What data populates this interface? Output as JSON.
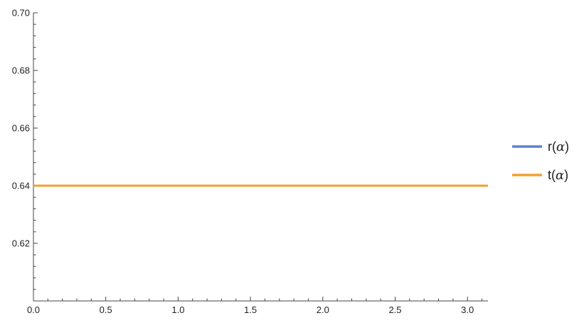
{
  "chart_data": {
    "type": "line",
    "title": "",
    "xlabel": "",
    "ylabel": "",
    "xlim": [
      0,
      3.14159
    ],
    "ylim": [
      0.6,
      0.7
    ],
    "x_ticks": [
      0,
      0.5,
      1.0,
      1.5,
      2.0,
      2.5,
      3.0
    ],
    "x_tick_labels": [
      "0.0",
      "0.5",
      "1.0",
      "1.5",
      "2.0",
      "2.5",
      "3.0"
    ],
    "y_ticks": [
      0.62,
      0.64,
      0.66,
      0.68,
      0.7
    ],
    "y_tick_labels": [
      "0.62",
      "0.64",
      "0.66",
      "0.68",
      "0.70"
    ],
    "grid": false,
    "legend_position": "right",
    "series": [
      {
        "name": "r(α)",
        "label_prefix": "r(",
        "label_symbol": "α",
        "label_suffix": ")",
        "color": "#5e81d6",
        "x": [
          0,
          3.14159
        ],
        "y": [
          0.64,
          0.64
        ]
      },
      {
        "name": "t(α)",
        "label_prefix": "t(",
        "label_symbol": "α",
        "label_suffix": ")",
        "color": "#f0a030",
        "x": [
          0,
          3.14159
        ],
        "y": [
          0.64,
          0.64
        ]
      }
    ]
  }
}
